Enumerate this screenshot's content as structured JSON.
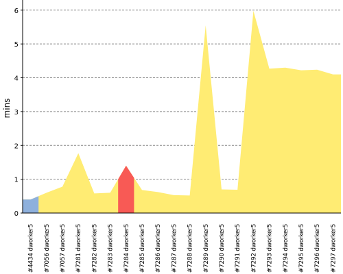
{
  "chart_data": {
    "type": "area",
    "title": "",
    "xlabel": "",
    "ylabel": "mins",
    "ylim": [
      0,
      6.3
    ],
    "yticks": [
      0,
      1,
      2,
      3,
      4,
      5,
      6
    ],
    "grid": true,
    "categories": [
      "#4434 dworker5",
      "#7056 dworker5",
      "#7057 dworker5",
      "#7281 dworker5",
      "#7282 dworker5",
      "#7283 dworker5",
      "#7284 dworker5",
      "#7285 dworker5",
      "#7286 dworker5",
      "#7287 dworker5",
      "#7288 dworker5",
      "#7289 dworker5",
      "#7290 dworker5",
      "#7291 dworker5",
      "#7292 dworker5",
      "#7293 dworker5",
      "#7294 dworker5",
      "#7295 dworker5",
      "#7296 dworker5",
      "#7297 dworker5"
    ],
    "values": [
      0.4,
      0.6,
      0.78,
      1.77,
      0.58,
      0.6,
      1.4,
      0.68,
      0.62,
      0.53,
      0.52,
      5.55,
      0.7,
      0.69,
      5.98,
      4.27,
      4.3,
      4.22,
      4.24,
      4.1
    ],
    "colors": {
      "area": "#ffec73",
      "highlight_first": "#8eb0dc",
      "highlight_current": "#f85a55",
      "grid": "#888888",
      "axis": "#000000"
    },
    "highlights": [
      {
        "index": 0,
        "color_key": "highlight_first"
      },
      {
        "index": 6,
        "color_key": "highlight_current"
      }
    ]
  }
}
